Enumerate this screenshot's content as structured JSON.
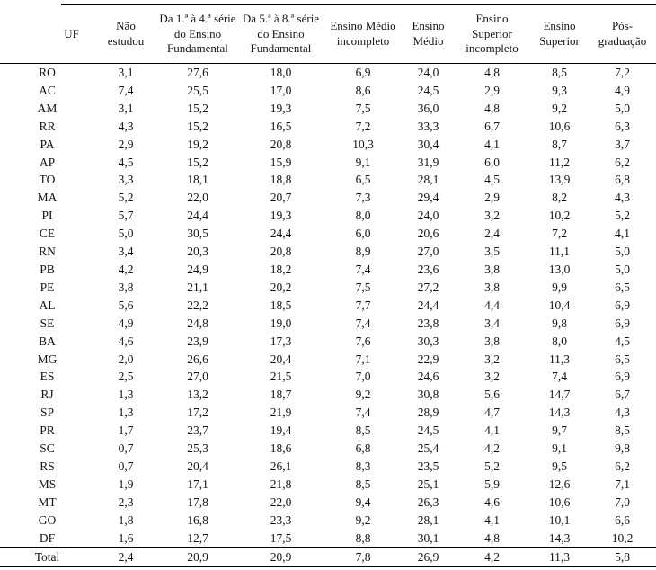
{
  "table": {
    "columns": [
      {
        "key": "uf",
        "label": "UF"
      },
      {
        "key": "nao_estudou",
        "label": "Não\nestudou"
      },
      {
        "key": "fund_1a4",
        "label": "Da 1.ª à 4.ª série\ndo Ensino\nFundamental"
      },
      {
        "key": "fund_5a8",
        "label": "Da 5.ª à 8.ª série\ndo Ensino\nFundamental"
      },
      {
        "key": "medio_incompleto",
        "label": "Ensino Médio\nincompleto"
      },
      {
        "key": "medio",
        "label": "Ensino\nMédio"
      },
      {
        "key": "superior_incompleto",
        "label": "Ensino\nSuperior\nincompleto"
      },
      {
        "key": "superior",
        "label": "Ensino\nSuperior"
      },
      {
        "key": "pos_graduacao",
        "label": "Pós-\ngraduação"
      }
    ],
    "rows": [
      [
        "RO",
        "3,1",
        "27,6",
        "18,0",
        "6,9",
        "24,0",
        "4,8",
        "8,5",
        "7,2"
      ],
      [
        "AC",
        "7,4",
        "25,5",
        "17,0",
        "8,6",
        "24,5",
        "2,9",
        "9,3",
        "4,9"
      ],
      [
        "AM",
        "3,1",
        "15,2",
        "19,3",
        "7,5",
        "36,0",
        "4,8",
        "9,2",
        "5,0"
      ],
      [
        "RR",
        "4,3",
        "15,2",
        "16,5",
        "7,2",
        "33,3",
        "6,7",
        "10,6",
        "6,3"
      ],
      [
        "PA",
        "2,9",
        "19,2",
        "20,8",
        "10,3",
        "30,4",
        "4,1",
        "8,7",
        "3,7"
      ],
      [
        "AP",
        "4,5",
        "15,2",
        "15,9",
        "9,1",
        "31,9",
        "6,0",
        "11,2",
        "6,2"
      ],
      [
        "TO",
        "3,3",
        "18,1",
        "18,8",
        "6,5",
        "28,1",
        "4,5",
        "13,9",
        "6,8"
      ],
      [
        "MA",
        "5,2",
        "22,0",
        "20,7",
        "7,3",
        "29,4",
        "2,9",
        "8,2",
        "4,3"
      ],
      [
        "PI",
        "5,7",
        "24,4",
        "19,3",
        "8,0",
        "24,0",
        "3,2",
        "10,2",
        "5,2"
      ],
      [
        "CE",
        "5,0",
        "30,5",
        "24,4",
        "6,0",
        "20,6",
        "2,4",
        "7,2",
        "4,1"
      ],
      [
        "RN",
        "3,4",
        "20,3",
        "20,8",
        "8,9",
        "27,0",
        "3,5",
        "11,1",
        "5,0"
      ],
      [
        "PB",
        "4,2",
        "24,9",
        "18,2",
        "7,4",
        "23,6",
        "3,8",
        "13,0",
        "5,0"
      ],
      [
        "PE",
        "3,8",
        "21,1",
        "20,2",
        "7,5",
        "27,2",
        "3,8",
        "9,9",
        "6,5"
      ],
      [
        "AL",
        "5,6",
        "22,2",
        "18,5",
        "7,7",
        "24,4",
        "4,4",
        "10,4",
        "6,9"
      ],
      [
        "SE",
        "4,9",
        "24,8",
        "19,0",
        "7,4",
        "23,8",
        "3,4",
        "9,8",
        "6,9"
      ],
      [
        "BA",
        "4,6",
        "23,9",
        "17,3",
        "7,6",
        "30,3",
        "3,8",
        "8,0",
        "4,5"
      ],
      [
        "MG",
        "2,0",
        "26,6",
        "20,4",
        "7,1",
        "22,9",
        "3,2",
        "11,3",
        "6,5"
      ],
      [
        "ES",
        "2,5",
        "27,0",
        "21,5",
        "7,0",
        "24,6",
        "3,2",
        "7,4",
        "6,9"
      ],
      [
        "RJ",
        "1,3",
        "13,2",
        "18,7",
        "9,2",
        "30,8",
        "5,6",
        "14,7",
        "6,7"
      ],
      [
        "SP",
        "1,3",
        "17,2",
        "21,9",
        "7,4",
        "28,9",
        "4,7",
        "14,3",
        "4,3"
      ],
      [
        "PR",
        "1,7",
        "23,7",
        "19,4",
        "8,5",
        "24,5",
        "4,1",
        "9,7",
        "8,5"
      ],
      [
        "SC",
        "0,7",
        "25,3",
        "18,6",
        "6,8",
        "25,4",
        "4,2",
        "9,1",
        "9,8"
      ],
      [
        "RS",
        "0,7",
        "20,4",
        "26,1",
        "8,3",
        "23,5",
        "5,2",
        "9,5",
        "6,2"
      ],
      [
        "MS",
        "1,9",
        "17,1",
        "21,8",
        "8,5",
        "25,1",
        "5,9",
        "12,6",
        "7,1"
      ],
      [
        "MT",
        "2,3",
        "17,8",
        "22,0",
        "9,4",
        "26,3",
        "4,6",
        "10,6",
        "7,0"
      ],
      [
        "GO",
        "1,8",
        "16,8",
        "23,3",
        "9,2",
        "28,1",
        "4,1",
        "10,1",
        "6,6"
      ],
      [
        "DF",
        "1,6",
        "12,7",
        "17,5",
        "8,8",
        "30,1",
        "4,8",
        "14,3",
        "10,2"
      ]
    ],
    "total_row": [
      "Total",
      "2,4",
      "20,9",
      "20,9",
      "7,8",
      "26,9",
      "4,2",
      "11,3",
      "5,8"
    ]
  },
  "colors": {
    "background": "#ffffff",
    "text": "#151515",
    "rule": "#000000"
  }
}
